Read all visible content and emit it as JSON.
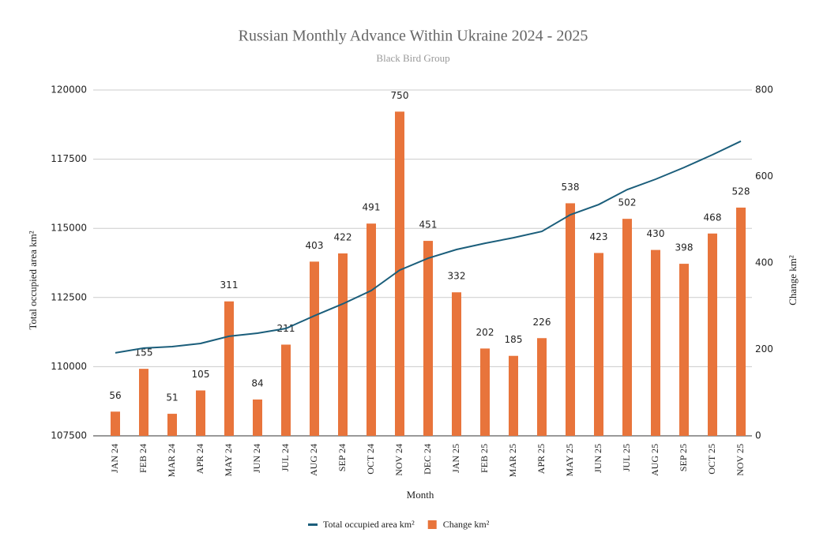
{
  "chart_data": {
    "type": "bar-line",
    "title": "Russian Monthly Advance Within Ukraine 2024 - 2025",
    "subtitle": "Black Bird Group",
    "x_label": "Month",
    "y_label": "Total occupied area km²",
    "y2_label": "Change km²",
    "categories": [
      "JAN 24",
      "FEB 24",
      "MAR 24",
      "APR 24",
      "MAY 24",
      "JUN 24",
      "JUL 24",
      "AUG 24",
      "SEP 24",
      "OCT 24",
      "NOV 24",
      "DEC 24",
      "JAN 25",
      "FEB 25",
      "MAR 25",
      "APR 25",
      "MAY 25",
      "JUN 25",
      "JUL 25",
      "AUG 25",
      "SEP 25",
      "OCT 25",
      "NOV 25"
    ],
    "series": [
      {
        "name": "Total occupied area km²",
        "type": "line",
        "color": "#1b5e7b",
        "values": [
          110500,
          110670,
          110725,
          110840,
          111100,
          111210,
          111380,
          111840,
          112270,
          112750,
          113490,
          113920,
          114235,
          114460,
          114660,
          114890,
          115490,
          115860,
          116400,
          116775,
          117200,
          117660,
          118150
        ]
      },
      {
        "name": "Change km²",
        "type": "bar",
        "axis": "y2",
        "color": "#e8743b",
        "values": [
          56,
          155,
          51,
          105,
          311,
          84,
          211,
          403,
          422,
          491,
          750,
          451,
          332,
          202,
          185,
          226,
          538,
          423,
          502,
          430,
          398,
          468,
          528
        ]
      }
    ],
    "ylim": [
      107500,
      120000
    ],
    "yticks": [
      107500,
      110000,
      112500,
      115000,
      117500,
      120000
    ],
    "y2lim": [
      0,
      800
    ],
    "y2ticks": [
      0,
      200,
      400,
      600,
      800
    ],
    "grid": true
  }
}
